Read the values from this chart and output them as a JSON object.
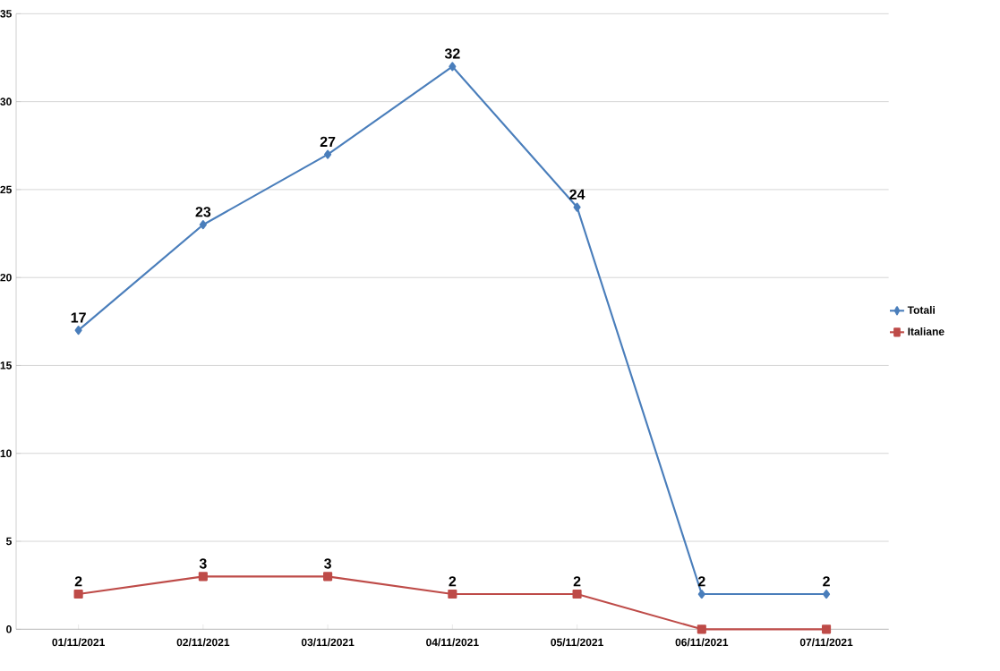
{
  "chart_data": {
    "type": "line",
    "categories": [
      "01/11/2021",
      "02/11/2021",
      "03/11/2021",
      "04/11/2021",
      "05/11/2021",
      "06/11/2021",
      "07/11/2021"
    ],
    "series": [
      {
        "name": "Totali",
        "color": "#4a7ebb",
        "marker": "diamond",
        "values": [
          17,
          23,
          27,
          32,
          24,
          2,
          2
        ],
        "value_labels": [
          "17",
          "23",
          "27",
          "32",
          "24",
          "2",
          "2"
        ]
      },
      {
        "name": "Italiane",
        "color": "#be4b48",
        "marker": "square",
        "values": [
          2,
          3,
          3,
          2,
          2,
          0,
          0
        ],
        "value_labels": [
          "2",
          "3",
          "3",
          "2",
          "2",
          null,
          null
        ]
      }
    ],
    "ylim": [
      0,
      35
    ],
    "yticks": [
      0,
      5,
      10,
      15,
      20,
      25,
      30,
      35
    ],
    "grid": "y",
    "legend": "right"
  }
}
